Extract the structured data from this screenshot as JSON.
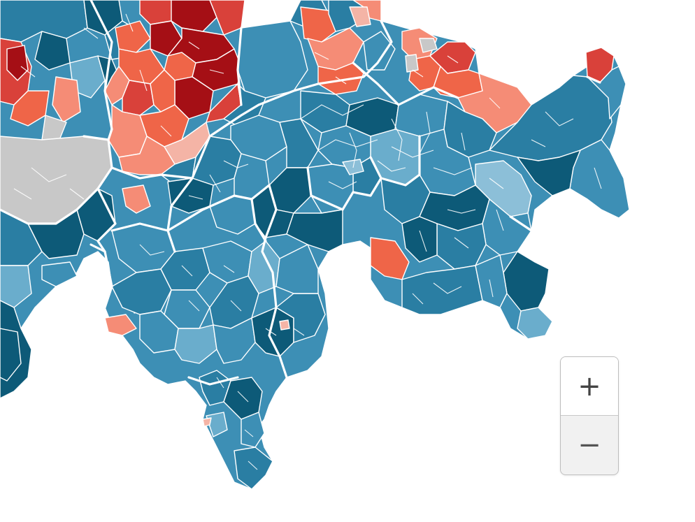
{
  "map": {
    "colors": {
      "blue_dark": "#0d5a78",
      "blue_mid": "#2a7ea3",
      "blue": "#3d8fb5",
      "blue_light": "#6aadcc",
      "blue_pale": "#8cbfd8",
      "red_dark": "#a50f15",
      "red": "#d9413a",
      "red_mid": "#ef6548",
      "red_light": "#f58c76",
      "red_pale": "#f4b4a6",
      "gray": "#c8c8c8"
    }
  },
  "zoom": {
    "zoom_in_label": "+",
    "zoom_out_label": "−"
  }
}
